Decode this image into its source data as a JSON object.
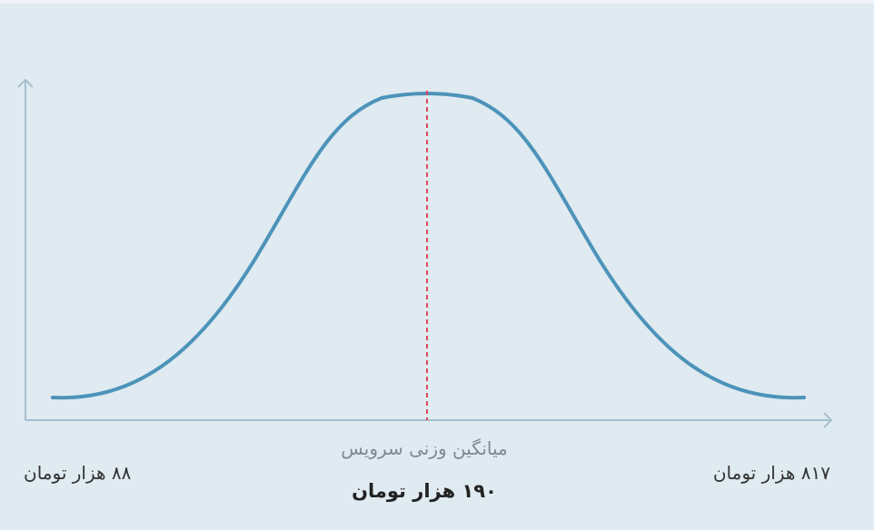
{
  "labels": {
    "min": "۸۸ هزار تومان",
    "max": "۸۱۷ هزار تومان",
    "mean_caption": "میانگین وزنی سرویس",
    "mean_value": "۱۹۰ هزار تومان"
  }
}
